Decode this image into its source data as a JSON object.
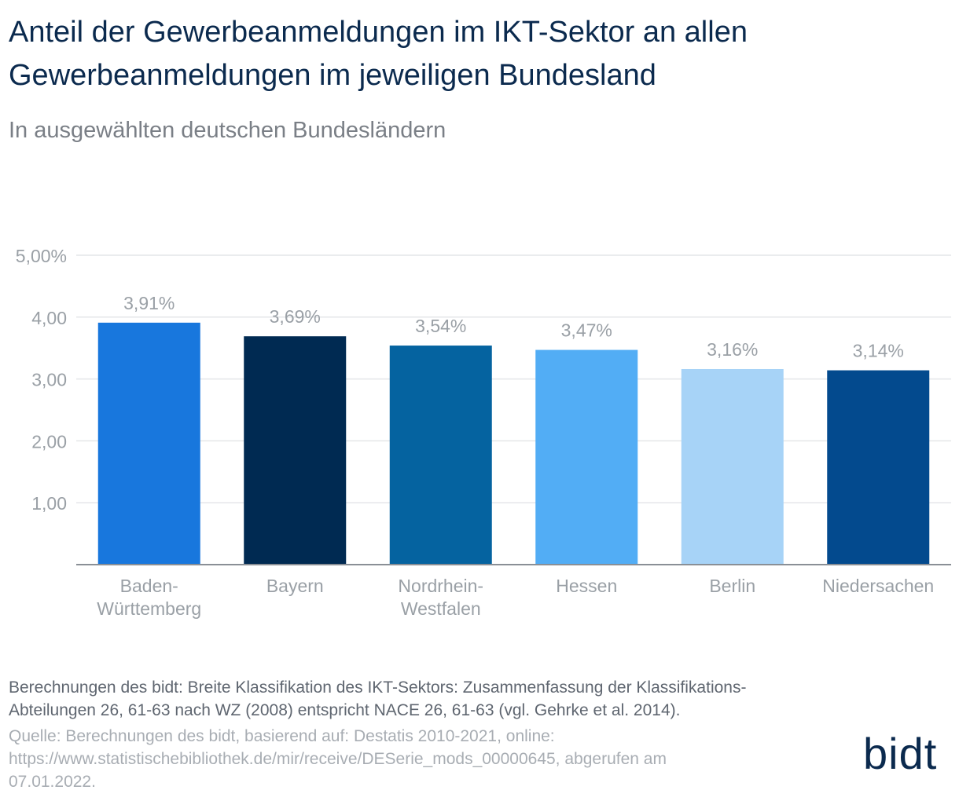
{
  "title_line1": "Anteil der Gewerbeanmeldungen im IKT-Sektor an allen",
  "title_line2": "Gewerbeanmeldungen im jeweiligen Bundesland",
  "subtitle": "In ausgewählten deutschen Bundesländern",
  "note_line1": "Berechnungen des bidt: Breite Klassifikation des IKT-Sektors: Zusammenfassung der Klassifikations-",
  "note_line2": "Abteilungen 26, 61-63 nach WZ (2008) entspricht NACE 26, 61-63 (vgl. Gehrke et al. 2014).",
  "source_line1": "Quelle: Berechnungen des bidt, basierend auf: Destatis 2010-2021, online:",
  "source_line2": "https://www.statistischebibliothek.de/mir/receive/DESerie_mods_00000645, abgerufen am",
  "source_line3": "07.01.2022.",
  "logo": "bidt",
  "chart_data": {
    "type": "bar",
    "title": "Anteil der Gewerbeanmeldungen im IKT-Sektor an allen Gewerbeanmeldungen im jeweiligen Bundesland",
    "subtitle": "In ausgewählten deutschen Bundesländern",
    "categories": [
      [
        "Baden-",
        "Württemberg"
      ],
      [
        "Bayern"
      ],
      [
        "Nordrhein-",
        "Westfalen"
      ],
      [
        "Hessen"
      ],
      [
        "Berlin"
      ],
      [
        "Niedersachen"
      ]
    ],
    "values": [
      3.91,
      3.69,
      3.54,
      3.47,
      3.16,
      3.14
    ],
    "value_labels": [
      "3,91%",
      "3,69%",
      "3,54%",
      "3,47%",
      "3,16%",
      "3,14%"
    ],
    "colors": [
      "#1877dd",
      "#002a52",
      "#0563a0",
      "#52adf5",
      "#a7d3f7",
      "#034a8e"
    ],
    "yticks": [
      {
        "value": 1,
        "label": "1,00"
      },
      {
        "value": 2,
        "label": "2,00"
      },
      {
        "value": 3,
        "label": "3,00"
      },
      {
        "value": 4,
        "label": "4,00"
      },
      {
        "value": 5,
        "label": "5,00%"
      }
    ],
    "ylim": [
      0,
      5
    ],
    "xlabel": "",
    "ylabel": "",
    "grid": true,
    "grid_color": "#e4e6e9",
    "axis_color": "#8a8f96",
    "label_color": "#9aa0a6"
  }
}
